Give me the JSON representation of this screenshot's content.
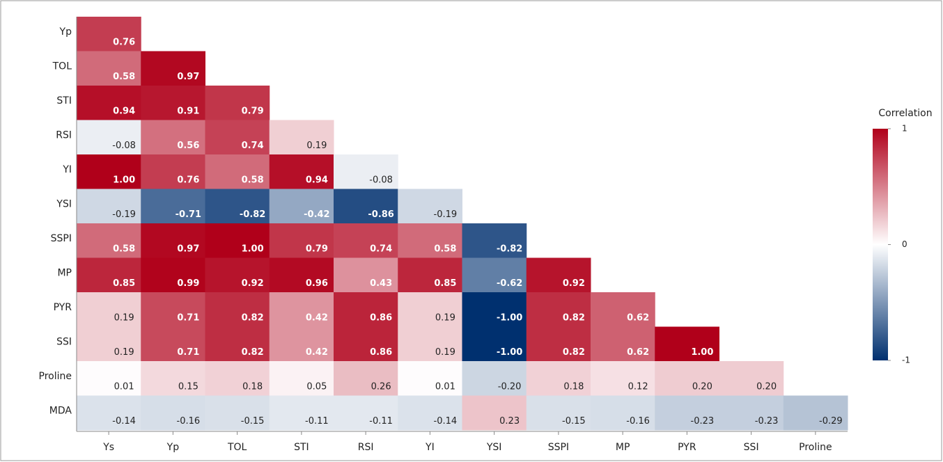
{
  "chart_data": {
    "type": "heatmap",
    "rows": [
      "Yp",
      "TOL",
      "STI",
      "RSI",
      "YI",
      "YSI",
      "SSPI",
      "MP",
      "PYR",
      "SSI",
      "Proline",
      "MDA"
    ],
    "columns": [
      "Ys",
      "Yp",
      "TOL",
      "STI",
      "RSI",
      "YI",
      "YSI",
      "SSPI",
      "MP",
      "PYR",
      "SSI",
      "Proline"
    ],
    "values": [
      [
        0.76,
        null,
        null,
        null,
        null,
        null,
        null,
        null,
        null,
        null,
        null,
        null
      ],
      [
        0.58,
        0.97,
        null,
        null,
        null,
        null,
        null,
        null,
        null,
        null,
        null,
        null
      ],
      [
        0.94,
        0.91,
        0.79,
        null,
        null,
        null,
        null,
        null,
        null,
        null,
        null,
        null
      ],
      [
        -0.08,
        0.56,
        0.74,
        0.19,
        null,
        null,
        null,
        null,
        null,
        null,
        null,
        null
      ],
      [
        1.0,
        0.76,
        0.58,
        0.94,
        -0.08,
        null,
        null,
        null,
        null,
        null,
        null,
        null
      ],
      [
        -0.19,
        -0.71,
        -0.82,
        -0.42,
        -0.86,
        -0.19,
        null,
        null,
        null,
        null,
        null,
        null
      ],
      [
        0.58,
        0.97,
        1.0,
        0.79,
        0.74,
        0.58,
        -0.82,
        null,
        null,
        null,
        null,
        null
      ],
      [
        0.85,
        0.99,
        0.92,
        0.96,
        0.43,
        0.85,
        -0.62,
        0.92,
        null,
        null,
        null,
        null
      ],
      [
        0.19,
        0.71,
        0.82,
        0.42,
        0.86,
        0.19,
        -1.0,
        0.82,
        0.62,
        null,
        null,
        null
      ],
      [
        0.19,
        0.71,
        0.82,
        0.42,
        0.86,
        0.19,
        -1.0,
        0.82,
        0.62,
        1.0,
        null,
        null
      ],
      [
        0.01,
        0.15,
        0.18,
        0.05,
        0.26,
        0.01,
        -0.2,
        0.18,
        0.12,
        0.2,
        0.2,
        null
      ],
      [
        -0.14,
        -0.16,
        -0.15,
        -0.11,
        -0.11,
        -0.14,
        0.23,
        -0.15,
        -0.16,
        -0.23,
        -0.23,
        -0.29
      ]
    ],
    "value_labels": [
      [
        "0.76",
        null,
        null,
        null,
        null,
        null,
        null,
        null,
        null,
        null,
        null,
        null
      ],
      [
        "0.58",
        "0.97",
        null,
        null,
        null,
        null,
        null,
        null,
        null,
        null,
        null,
        null
      ],
      [
        "0.94",
        "0.91",
        "0.79",
        null,
        null,
        null,
        null,
        null,
        null,
        null,
        null,
        null
      ],
      [
        "-0.08",
        "0.56",
        "0.74",
        "0.19",
        null,
        null,
        null,
        null,
        null,
        null,
        null,
        null
      ],
      [
        "1.00",
        "0.76",
        "0.58",
        "0.94",
        "-0.08",
        null,
        null,
        null,
        null,
        null,
        null,
        null
      ],
      [
        "-0.19",
        "-0.71",
        "-0.82",
        "-0.42",
        "-0.86",
        "-0.19",
        null,
        null,
        null,
        null,
        null,
        null
      ],
      [
        "0.58",
        "0.97",
        "1.00",
        "0.79",
        "0.74",
        "0.58",
        "-0.82",
        null,
        null,
        null,
        null,
        null
      ],
      [
        "0.85",
        "0.99",
        "0.92",
        "0.96",
        "0.43",
        "0.85",
        "-0.62",
        "0.92",
        null,
        null,
        null,
        null
      ],
      [
        "0.19",
        "0.71",
        "0.82",
        "0.42",
        "0.86",
        "0.19",
        "-1.00",
        "0.82",
        "0.62",
        null,
        null,
        null
      ],
      [
        "0.19",
        "0.71",
        "0.82",
        "0.42",
        "0.86",
        "0.19",
        "-1.00",
        "0.82",
        "0.62",
        "1.00",
        null,
        null
      ],
      [
        "0.01",
        "0.15",
        "0.18",
        "0.05",
        "0.26",
        "0.01",
        "-0.20",
        "0.18",
        "0.12",
        "0.20",
        "0.20",
        null
      ],
      [
        "-0.14",
        "-0.16",
        "-0.15",
        "-0.11",
        "-0.11",
        "-0.14",
        "0.23",
        "-0.15",
        "-0.16",
        "-0.23",
        "-0.23",
        "-0.29"
      ]
    ],
    "colorbar_title": "Correlation",
    "clim": [
      -1,
      1
    ],
    "cticks": [
      -1,
      0,
      1
    ],
    "colorscale": [
      "#00306f",
      "#ffffff",
      "#b0001a"
    ]
  }
}
